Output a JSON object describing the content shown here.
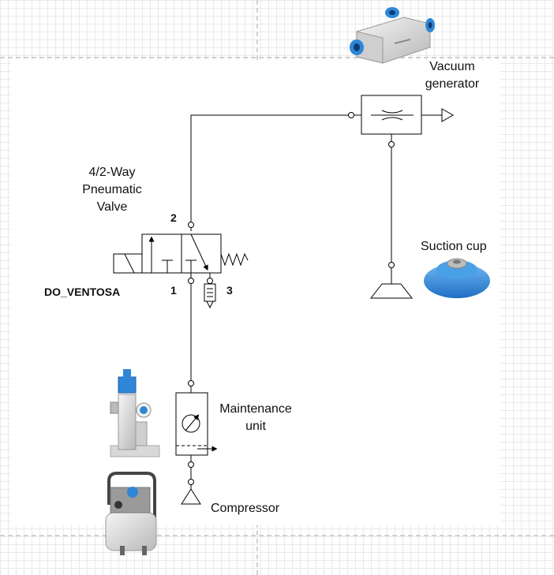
{
  "labels": {
    "vacuum_generator": "Vacuum generator",
    "valve": "4/2-Way Pneumatic Valve",
    "suction_cup": "Suction cup",
    "maintenance_unit": "Maintenance unit",
    "compressor": "Compressor"
  },
  "ports": {
    "p1": "1",
    "p2": "2",
    "p3": "3"
  },
  "signal": "DO_VENTOSA",
  "colors": {
    "line": "#000000",
    "grid": "#e9e9e9",
    "suction_blue": "#2f86d6"
  }
}
